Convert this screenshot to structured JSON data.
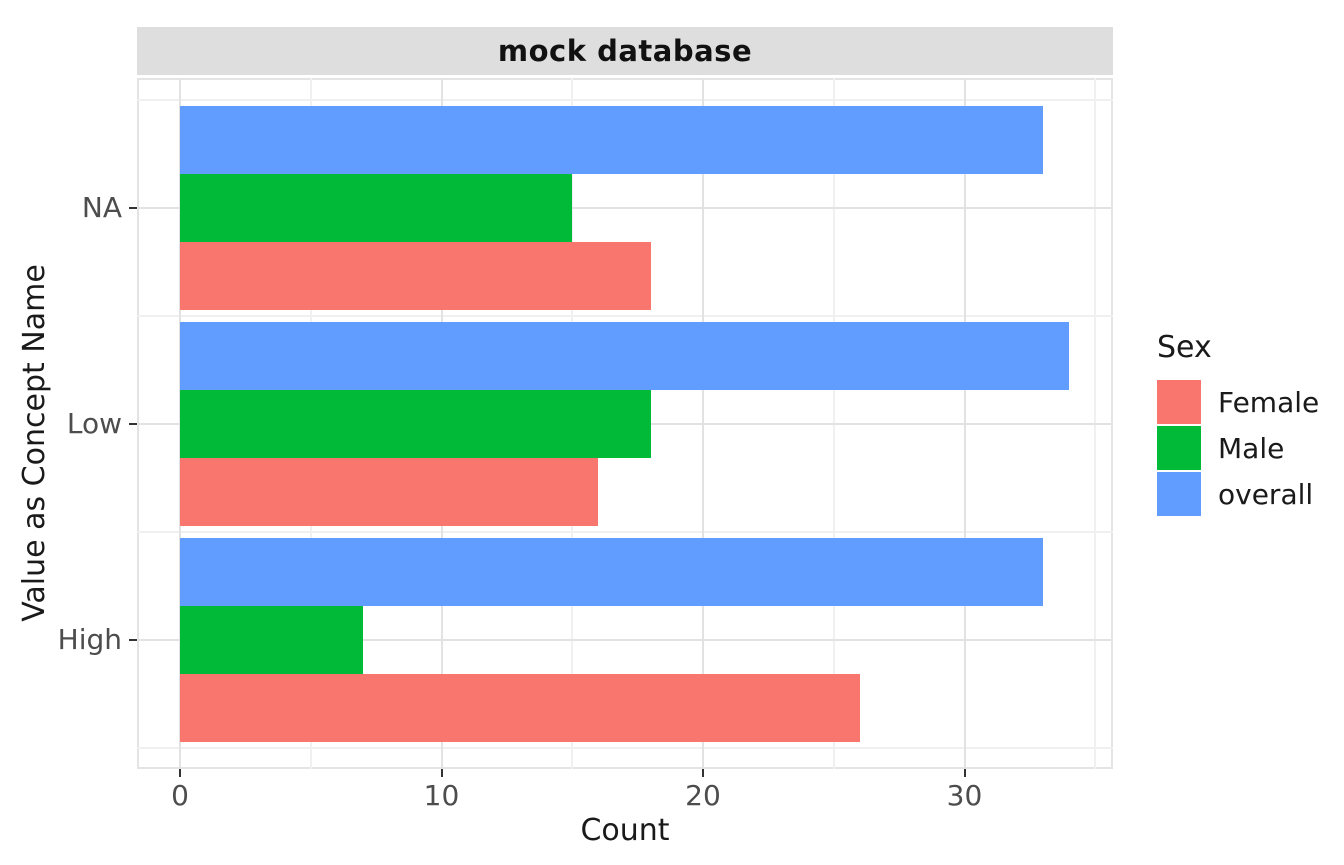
{
  "title": "mock database",
  "x_axis": {
    "label": "Count",
    "tick_labels": [
      "0",
      "10",
      "20",
      "30"
    ]
  },
  "y_axis": {
    "label": "Value as Concept Name",
    "categories": [
      "NA",
      "Low",
      "High"
    ]
  },
  "legend": {
    "title": "Sex",
    "entries": [
      {
        "label": "Female",
        "color": "#F8766D"
      },
      {
        "label": "Male",
        "color": "#00BA38"
      },
      {
        "label": "overall",
        "color": "#619CFF"
      }
    ]
  },
  "colors": {
    "female": "#F8766D",
    "male": "#00BA38",
    "overall": "#619CFF",
    "strip_background": "#DEDEDE",
    "grid_major": "#E2E2E2",
    "grid_minor": "#F0F0F0",
    "axis_text": "#4D4D4D"
  },
  "chart_data": {
    "type": "bar",
    "orientation": "horizontal",
    "title": "mock database",
    "xlabel": "Count",
    "ylabel": "Value as Concept Name",
    "categories": [
      "NA",
      "Low",
      "High"
    ],
    "series": [
      {
        "name": "overall",
        "color": "#619CFF",
        "values": [
          33,
          34,
          33
        ]
      },
      {
        "name": "Male",
        "color": "#00BA38",
        "values": [
          15,
          18,
          7
        ]
      },
      {
        "name": "Female",
        "color": "#F8766D",
        "values": [
          18,
          16,
          26
        ]
      }
    ],
    "xlim": [
      0,
      35.7
    ],
    "x_major_ticks": [
      0,
      10,
      20,
      30
    ],
    "x_minor_ticks": [
      5,
      15,
      25,
      35
    ],
    "grid": true,
    "legend_title": "Sex",
    "legend_position": "right",
    "bar_group_order_top_to_bottom": [
      "overall",
      "Male",
      "Female"
    ]
  }
}
